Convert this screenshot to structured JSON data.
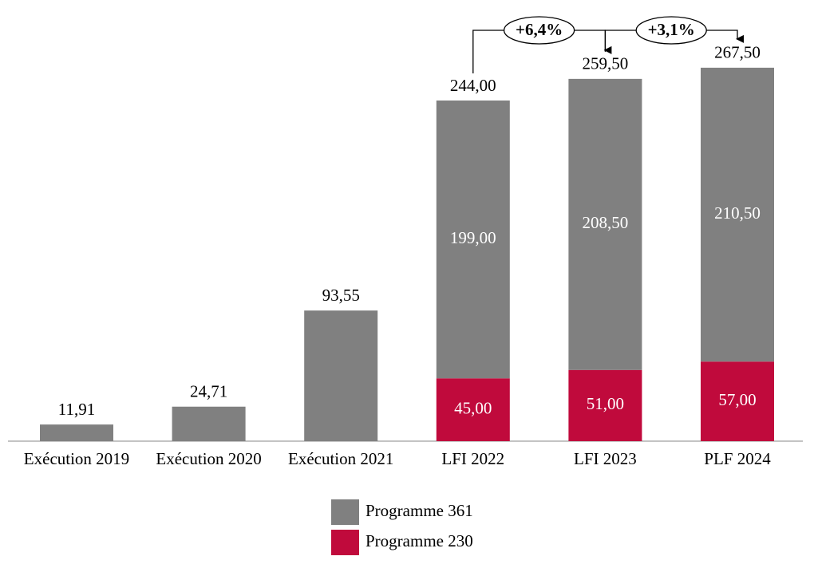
{
  "chart_data": {
    "type": "stacked-bar",
    "categories": [
      "Exécution 2019",
      "Exécution 2020",
      "Exécution 2021",
      "LFI 2022",
      "LFI 2023",
      "PLF 2024"
    ],
    "series": [
      {
        "name": "Programme 361",
        "color": "#808080",
        "values": [
          11.91,
          24.71,
          93.55,
          199.0,
          208.5,
          210.5
        ],
        "value_labels": [
          null,
          null,
          null,
          "199,00",
          "208,50",
          "210,50"
        ]
      },
      {
        "name": "Programme 230",
        "color": "#c00a3c",
        "values": [
          null,
          null,
          null,
          45.0,
          51.0,
          57.0
        ],
        "value_labels": [
          null,
          null,
          null,
          "45,00",
          "51,00",
          "57,00"
        ]
      }
    ],
    "totals": {
      "values": [
        11.91,
        24.71,
        93.55,
        244.0,
        259.5,
        267.5
      ],
      "value_labels": [
        "11,91",
        "24,71",
        "93,55",
        "244,00",
        "259,50",
        "267,50"
      ]
    },
    "annotations": [
      {
        "text": "+6,4%"
      },
      {
        "text": "+3,1%"
      }
    ]
  }
}
